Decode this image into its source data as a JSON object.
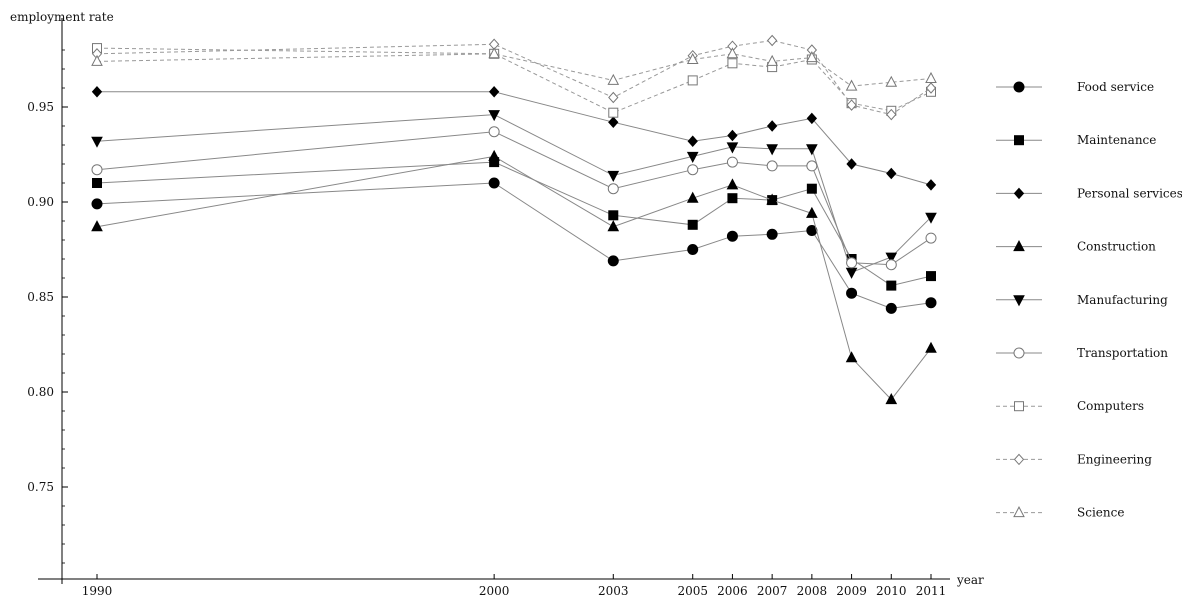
{
  "chart_data": {
    "type": "line",
    "title": "",
    "ylabel": "employment rate",
    "xlabel": "year",
    "x": [
      1990,
      2000,
      2003,
      2005,
      2006,
      2007,
      2008,
      2009,
      2010,
      2011
    ],
    "x_tick_labels": [
      "1990",
      "2000",
      "2003",
      "2005",
      "2006",
      "2007",
      "2008",
      "2009",
      "2010",
      "2011"
    ],
    "y_ticks": [
      0.75,
      0.8,
      0.85,
      0.9,
      0.95
    ],
    "y_tick_labels": [
      "0.75",
      "0.80",
      "0.85",
      "0.90",
      "0.95"
    ],
    "ylim": [
      0.705,
      0.99
    ],
    "grid": false,
    "legend_position": "right",
    "series": [
      {
        "name": "Food service",
        "marker": "circle-filled",
        "style": "solid",
        "color": "#888888",
        "values": [
          0.899,
          0.91,
          0.869,
          0.875,
          0.882,
          0.883,
          0.885,
          0.852,
          0.844,
          0.847
        ]
      },
      {
        "name": "Maintenance",
        "marker": "square-filled",
        "style": "solid",
        "color": "#888888",
        "values": [
          0.91,
          0.921,
          0.893,
          0.888,
          0.902,
          0.901,
          0.907,
          0.87,
          0.856,
          0.861
        ]
      },
      {
        "name": "Personal services",
        "marker": "diamond-filled",
        "style": "solid",
        "color": "#888888",
        "values": [
          0.958,
          0.958,
          0.942,
          0.932,
          0.935,
          0.94,
          0.944,
          0.92,
          0.915,
          0.909
        ]
      },
      {
        "name": "Construction",
        "marker": "triangle-up-filled",
        "style": "solid",
        "color": "#888888",
        "values": [
          0.887,
          0.924,
          0.887,
          0.902,
          0.909,
          0.901,
          0.894,
          0.818,
          0.796,
          0.823
        ]
      },
      {
        "name": "Manufacturing",
        "marker": "triangle-down-filled",
        "style": "solid",
        "color": "#888888",
        "values": [
          0.932,
          0.946,
          0.914,
          0.924,
          0.929,
          0.928,
          0.928,
          0.863,
          0.871,
          0.892
        ]
      },
      {
        "name": "Transportation",
        "marker": "circle-open",
        "style": "solid",
        "color": "#888888",
        "values": [
          0.917,
          0.937,
          0.907,
          0.917,
          0.921,
          0.919,
          0.919,
          0.868,
          0.867,
          0.881
        ]
      },
      {
        "name": "Computers",
        "marker": "square-open",
        "style": "dashed",
        "color": "#999999",
        "values": [
          0.981,
          0.978,
          0.947,
          0.964,
          0.973,
          0.971,
          0.975,
          0.952,
          0.948,
          0.958
        ]
      },
      {
        "name": "Engineering",
        "marker": "diamond-open",
        "style": "dashed",
        "color": "#999999",
        "values": [
          0.978,
          0.983,
          0.955,
          0.977,
          0.982,
          0.985,
          0.98,
          0.951,
          0.946,
          0.96
        ]
      },
      {
        "name": "Science",
        "marker": "triangle-up-open",
        "style": "dashed",
        "color": "#999999",
        "values": [
          0.974,
          0.978,
          0.964,
          0.975,
          0.978,
          0.974,
          0.976,
          0.961,
          0.963,
          0.965
        ]
      }
    ]
  }
}
